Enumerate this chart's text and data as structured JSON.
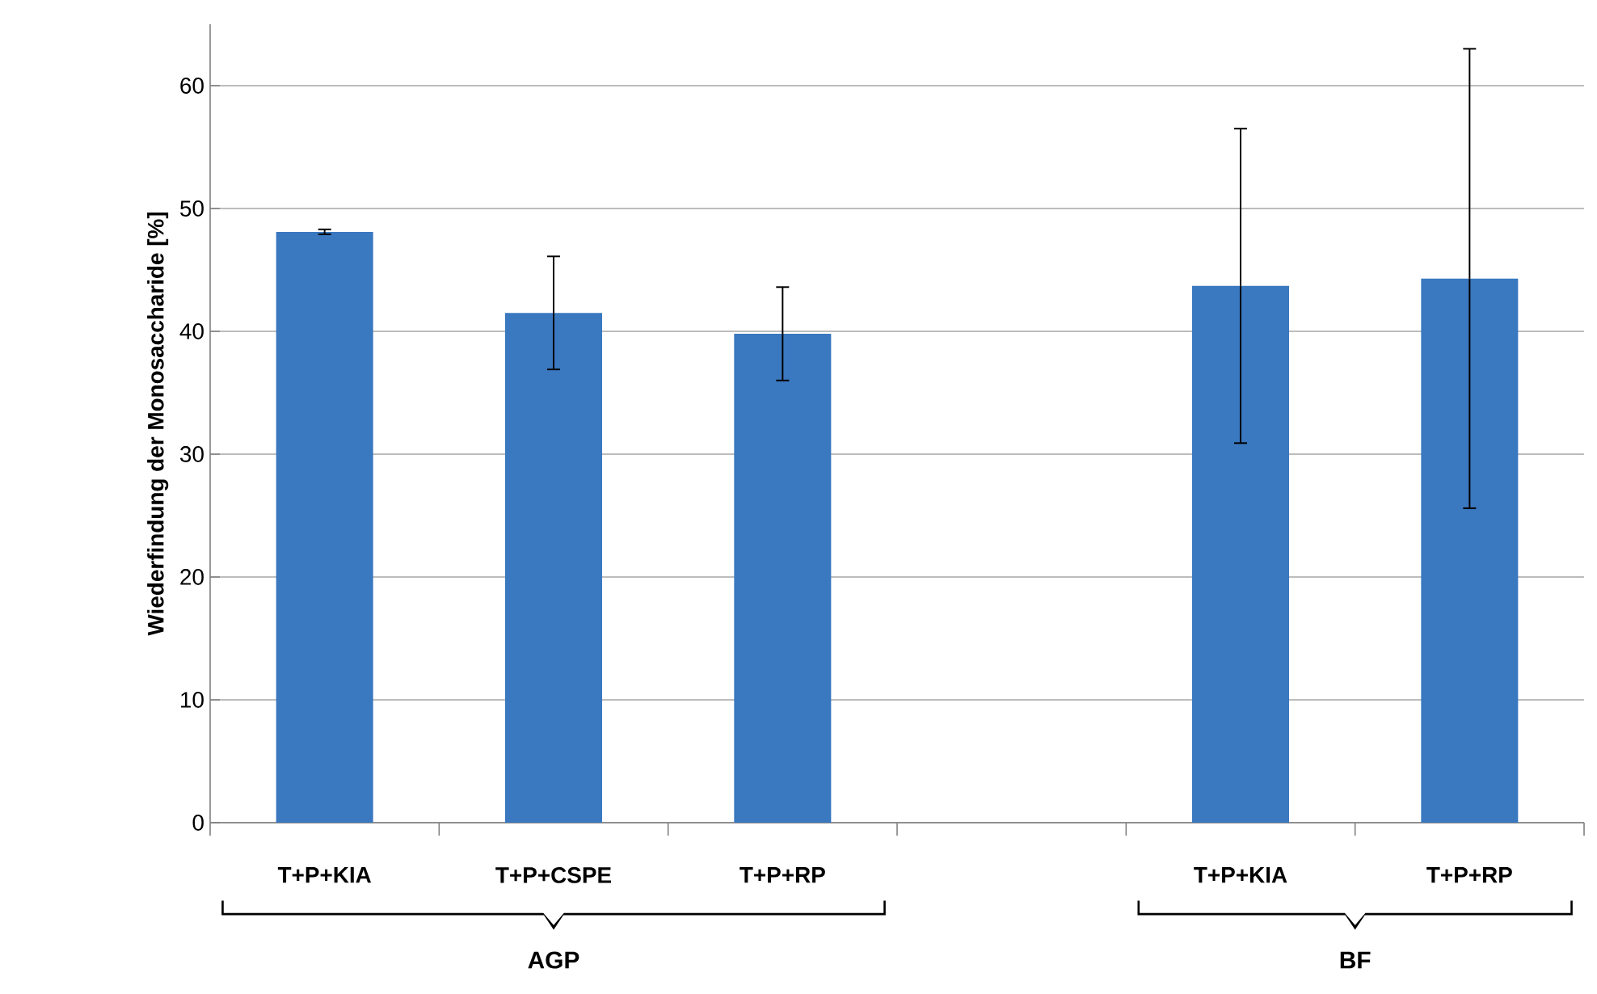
{
  "chart_data": {
    "type": "bar",
    "ylabel": "Wiederfindung der Monosaccharide [%]",
    "categories": [
      "T+P+KIA",
      "T+P+CSPE",
      "T+P+RP",
      null,
      "T+P+KIA",
      "T+P+RP"
    ],
    "values": [
      48.1,
      41.5,
      39.8,
      null,
      43.7,
      44.3
    ],
    "errors": [
      0.2,
      4.6,
      3.8,
      null,
      12.8,
      18.7
    ],
    "color": "#3a78c0",
    "ylim": [
      0,
      65
    ],
    "yticks": [
      0,
      10,
      20,
      30,
      40,
      50,
      60
    ],
    "grid": "y",
    "annotations": [
      "AGP",
      "BF"
    ]
  }
}
